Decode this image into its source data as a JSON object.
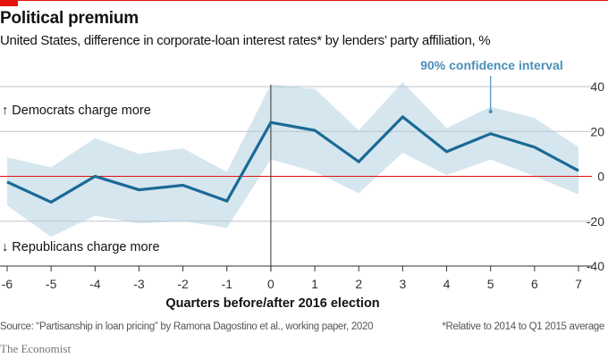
{
  "title": "Political premium",
  "subtitle": "United States, difference in corporate-loan interest rates* by lenders’ party affiliation, %",
  "footer": {
    "source": "Source: “Partisanship in loan pricing” by Ramona Dagostino et al., working paper, 2020",
    "note": "*Relative to 2014 to Q1 2015 average",
    "brand": "The Economist"
  },
  "colors": {
    "line": "#1a6a96",
    "band": "#d6e6ef",
    "zero": "#e3120b",
    "accent": "#e3120b",
    "annotation": "#4a8fb8"
  },
  "chart_data": {
    "type": "line",
    "xlabel": "Quarters before/after 2016 election",
    "ylabel": "",
    "x": [
      -6,
      -5,
      -4,
      -3,
      -2,
      -1,
      0,
      1,
      2,
      3,
      4,
      5,
      6,
      7
    ],
    "xlim": [
      -6,
      7
    ],
    "ylim": [
      -40,
      40
    ],
    "yticks": [
      40,
      20,
      0,
      -20,
      -40
    ],
    "xticks": [
      -6,
      -5,
      -4,
      -3,
      -2,
      -1,
      0,
      1,
      2,
      3,
      4,
      5,
      6,
      7
    ],
    "grid": true,
    "series": [
      {
        "values": [
          -2.5,
          -11.5,
          0,
          -6,
          -4,
          -11,
          24,
          20.5,
          6.5,
          26.5,
          11,
          19,
          13,
          2.5
        ]
      }
    ],
    "band": {
      "name": "90% confidence interval",
      "upper": [
        8.5,
        4,
        17,
        10,
        12.5,
        2,
        41,
        39,
        20.5,
        42,
        21.5,
        31,
        26,
        13
      ],
      "lower": [
        -13,
        -27,
        -17.5,
        -21,
        -20,
        -23,
        7.5,
        2,
        -7.5,
        10.5,
        0.5,
        7.5,
        0,
        -8
      ]
    },
    "annotations": [
      "↑ Democrats charge more",
      "↓ Republicans charge more"
    ],
    "vline_x": 0
  }
}
